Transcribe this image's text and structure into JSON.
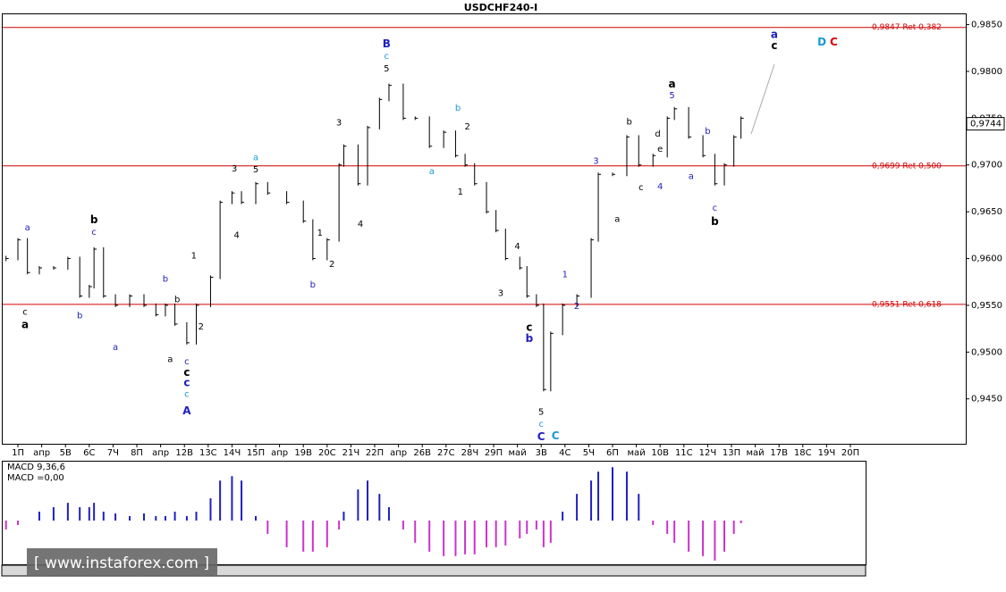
{
  "chart_data": [
    {
      "type": "ohlc",
      "title": "USDCHF240-I",
      "x": [
        -0.5,
        0,
        0.4,
        0.9,
        1.5,
        2.1,
        2.6,
        3.0,
        3.2,
        3.6,
        4.1,
        4.7,
        5.3,
        5.8,
        6.2,
        6.6,
        7.1,
        7.5,
        8.1,
        8.5,
        9.0,
        9.4,
        10.0,
        10.5,
        11.3,
        12.0,
        12.4,
        13.0,
        13.5,
        13.7,
        14.3,
        14.7,
        15.2,
        15.6,
        16.2,
        16.7,
        17.3,
        17.9,
        18.4,
        18.8,
        19.2,
        19.7,
        20.1,
        20.5,
        21.1,
        21.4,
        21.8,
        22.1,
        22.4,
        22.9,
        23.5,
        24.1,
        24.4,
        25.0,
        25.6,
        26.1,
        26.7,
        27.3,
        27.6,
        28.2,
        28.8,
        29.3,
        29.7,
        30.1,
        30.4
      ],
      "series": [
        {
          "color": "#000000",
          "values": [
            0.96,
            0.962,
            0.9585,
            0.959,
            0.959,
            0.96,
            0.956,
            0.957,
            0.961,
            0.956,
            0.955,
            0.956,
            0.955,
            0.954,
            0.955,
            0.953,
            0.951,
            0.955,
            0.958,
            0.966,
            0.967,
            0.966,
            0.968,
            0.967,
            0.966,
            0.964,
            0.96,
            0.962,
            0.97,
            0.972,
            0.968,
            0.974,
            0.977,
            0.9785,
            0.975,
            0.975,
            0.972,
            0.9735,
            0.971,
            0.97,
            0.968,
            0.965,
            0.963,
            0.96,
            0.959,
            0.956,
            0.955,
            0.946,
            0.952,
            0.955,
            0.956,
            0.962,
            0.969,
            0.969,
            0.973,
            0.97,
            0.971,
            0.975,
            0.976,
            0.973,
            0.971,
            0.968,
            0.97,
            0.973,
            0.975
          ]
        }
      ],
      "xlim": [
        -0.64,
        39.85
      ],
      "xticks": [
        {
          "value": 0,
          "label": "1П"
        },
        {
          "value": 1,
          "label": "апр"
        },
        {
          "value": 2,
          "label": "5В"
        },
        {
          "value": 3,
          "label": "6С"
        },
        {
          "value": 4,
          "label": "7Ч"
        },
        {
          "value": 5,
          "label": "8П"
        },
        {
          "value": 6,
          "label": "апр"
        },
        {
          "value": 7,
          "label": "12В"
        },
        {
          "value": 8,
          "label": "13С"
        },
        {
          "value": 9,
          "label": "14Ч"
        },
        {
          "value": 10,
          "label": "15П"
        },
        {
          "value": 11,
          "label": "апр"
        },
        {
          "value": 12,
          "label": "19В"
        },
        {
          "value": 13,
          "label": "20С"
        },
        {
          "value": 14,
          "label": "21Ч"
        },
        {
          "value": 15,
          "label": "22П"
        },
        {
          "value": 16,
          "label": "апр"
        },
        {
          "value": 17,
          "label": "26В"
        },
        {
          "value": 18,
          "label": "27С"
        },
        {
          "value": 19,
          "label": "28Ч"
        },
        {
          "value": 20,
          "label": "29П"
        },
        {
          "value": 21,
          "label": "май"
        },
        {
          "value": 22,
          "label": "3В"
        },
        {
          "value": 23,
          "label": "4С"
        },
        {
          "value": 24,
          "label": "5Ч"
        },
        {
          "value": 25,
          "label": "6П"
        },
        {
          "value": 26,
          "label": "май"
        },
        {
          "value": 27,
          "label": "10В"
        },
        {
          "value": 28,
          "label": "11С"
        },
        {
          "value": 29,
          "label": "12Ч"
        },
        {
          "value": 30,
          "label": "13П"
        },
        {
          "value": 31,
          "label": "май"
        },
        {
          "value": 32,
          "label": "17В"
        },
        {
          "value": 33,
          "label": "18С"
        },
        {
          "value": 34,
          "label": "19Ч"
        },
        {
          "value": 35,
          "label": "20П"
        }
      ],
      "ylim": [
        0.9402,
        0.9862
      ],
      "yticks": [
        {
          "value": 0.945,
          "label": "0,9450"
        },
        {
          "value": 0.95,
          "label": "0,9500"
        },
        {
          "value": 0.955,
          "label": "0,9550"
        },
        {
          "value": 0.96,
          "label": "0,9600"
        },
        {
          "value": 0.965,
          "label": "0,9650"
        },
        {
          "value": 0.97,
          "label": "0,9700"
        },
        {
          "value": 0.975,
          "label": "0,9750"
        },
        {
          "value": 0.98,
          "label": "0,9800"
        },
        {
          "value": 0.985,
          "label": "0,9850"
        }
      ],
      "levels_color": "#d00000",
      "levels": [
        {
          "value": 0.9847,
          "label": "0,9847 Ret 0,382"
        },
        {
          "value": 0.9699,
          "label": "0,9699 Ret 0,500"
        },
        {
          "value": 0.9551,
          "label": "0,9551 Ret 0,618"
        }
      ],
      "last": {
        "value": 0.9744,
        "label": "0,9744"
      },
      "annotations": [
        {
          "text": "a",
          "x": 0.4,
          "y": 0.9633,
          "color": "#2020c0"
        },
        {
          "text": "c",
          "x": 0.3,
          "y": 0.9543,
          "color": "#000000"
        },
        {
          "text": "a",
          "x": 0.3,
          "y": 0.9529,
          "color": "#000000",
          "bold": true
        },
        {
          "text": "b",
          "x": 3.2,
          "y": 0.9641,
          "color": "#000000",
          "bold": true
        },
        {
          "text": "c",
          "x": 3.2,
          "y": 0.9628,
          "color": "#2020c0"
        },
        {
          "text": "b",
          "x": 2.6,
          "y": 0.9539,
          "color": "#2020c0"
        },
        {
          "text": "a",
          "x": 4.1,
          "y": 0.9505,
          "color": "#2020c0"
        },
        {
          "text": "b",
          "x": 6.2,
          "y": 0.9578,
          "color": "#2020c0"
        },
        {
          "text": "b",
          "x": 6.7,
          "y": 0.9556,
          "color": "#000000"
        },
        {
          "text": "a",
          "x": 6.4,
          "y": 0.9492,
          "color": "#000000"
        },
        {
          "text": "1",
          "x": 7.4,
          "y": 0.9603,
          "color": "#000000"
        },
        {
          "text": "2",
          "x": 7.7,
          "y": 0.9527,
          "color": "#000000"
        },
        {
          "text": "c",
          "x": 7.1,
          "y": 0.949,
          "color": "#2020c0"
        },
        {
          "text": "c",
          "x": 7.1,
          "y": 0.9478,
          "color": "#000000",
          "bold": true
        },
        {
          "text": "c",
          "x": 7.1,
          "y": 0.9467,
          "color": "#2020c0",
          "bold": true
        },
        {
          "text": "c",
          "x": 7.1,
          "y": 0.9455,
          "color": "#1a9ad6"
        },
        {
          "text": "A",
          "x": 7.1,
          "y": 0.9437,
          "color": "#2020c0",
          "bold": true
        },
        {
          "text": "3",
          "x": 9.1,
          "y": 0.9696,
          "color": "#000000"
        },
        {
          "text": "4",
          "x": 9.2,
          "y": 0.9625,
          "color": "#000000"
        },
        {
          "text": "a",
          "x": 10.0,
          "y": 0.9708,
          "color": "#1a9ad6"
        },
        {
          "text": "5",
          "x": 10.0,
          "y": 0.9695,
          "color": "#000000"
        },
        {
          "text": "1",
          "x": 12.7,
          "y": 0.9627,
          "color": "#000000"
        },
        {
          "text": "2",
          "x": 13.2,
          "y": 0.9594,
          "color": "#000000"
        },
        {
          "text": "b",
          "x": 12.4,
          "y": 0.9572,
          "color": "#2020c0"
        },
        {
          "text": "3",
          "x": 13.5,
          "y": 0.9745,
          "color": "#000000"
        },
        {
          "text": "4",
          "x": 14.4,
          "y": 0.9637,
          "color": "#000000"
        },
        {
          "text": "B",
          "x": 15.5,
          "y": 0.9829,
          "color": "#2020c0",
          "bold": true
        },
        {
          "text": "c",
          "x": 15.5,
          "y": 0.9816,
          "color": "#1a9ad6"
        },
        {
          "text": "5",
          "x": 15.5,
          "y": 0.9803,
          "color": "#000000"
        },
        {
          "text": "a",
          "x": 17.4,
          "y": 0.9693,
          "color": "#1a9ad6"
        },
        {
          "text": "b",
          "x": 18.5,
          "y": 0.9761,
          "color": "#1a9ad6"
        },
        {
          "text": "2",
          "x": 18.9,
          "y": 0.9741,
          "color": "#000000"
        },
        {
          "text": "1",
          "x": 18.6,
          "y": 0.9671,
          "color": "#000000"
        },
        {
          "text": "4",
          "x": 21.0,
          "y": 0.9613,
          "color": "#000000"
        },
        {
          "text": "3",
          "x": 20.3,
          "y": 0.9563,
          "color": "#000000"
        },
        {
          "text": "c",
          "x": 21.5,
          "y": 0.9526,
          "color": "#000000",
          "bold": true
        },
        {
          "text": "b",
          "x": 21.5,
          "y": 0.9514,
          "color": "#2020c0",
          "bold": true
        },
        {
          "text": "5",
          "x": 22.0,
          "y": 0.9436,
          "color": "#000000"
        },
        {
          "text": "c",
          "x": 22.0,
          "y": 0.9423,
          "color": "#1a9ad6"
        },
        {
          "text": "C",
          "x": 22.0,
          "y": 0.9409,
          "color": "#2020c0",
          "bold": true
        },
        {
          "text": "C",
          "x": 22.6,
          "y": 0.941,
          "color": "#1a9ad6",
          "bold": true
        },
        {
          "text": "1",
          "x": 23.0,
          "y": 0.9583,
          "color": "#2020c0"
        },
        {
          "text": "2",
          "x": 23.5,
          "y": 0.9549,
          "color": "#2020c0"
        },
        {
          "text": "3",
          "x": 24.3,
          "y": 0.9704,
          "color": "#2020c0"
        },
        {
          "text": "a",
          "x": 25.2,
          "y": 0.9642,
          "color": "#000000"
        },
        {
          "text": "b",
          "x": 25.7,
          "y": 0.9746,
          "color": "#000000"
        },
        {
          "text": "c",
          "x": 26.2,
          "y": 0.9676,
          "color": "#000000"
        },
        {
          "text": "d",
          "x": 26.9,
          "y": 0.9733,
          "color": "#000000"
        },
        {
          "text": "e",
          "x": 27.0,
          "y": 0.9717,
          "color": "#000000"
        },
        {
          "text": "4",
          "x": 27.0,
          "y": 0.9677,
          "color": "#2020c0"
        },
        {
          "text": "a",
          "x": 27.5,
          "y": 0.9786,
          "color": "#000000",
          "bold": true
        },
        {
          "text": "5",
          "x": 27.5,
          "y": 0.9774,
          "color": "#2020c0"
        },
        {
          "text": "a",
          "x": 28.3,
          "y": 0.9688,
          "color": "#2020c0"
        },
        {
          "text": "b",
          "x": 29.0,
          "y": 0.9736,
          "color": "#2020c0"
        },
        {
          "text": "c",
          "x": 29.3,
          "y": 0.9654,
          "color": "#2020c0"
        },
        {
          "text": "b",
          "x": 29.3,
          "y": 0.9639,
          "color": "#000000",
          "bold": true
        },
        {
          "text": "a",
          "x": 31.8,
          "y": 0.9839,
          "color": "#2020c0",
          "bold": true
        },
        {
          "text": "c",
          "x": 31.8,
          "y": 0.9827,
          "color": "#000000",
          "bold": true
        },
        {
          "text": "D",
          "x": 33.8,
          "y": 0.9831,
          "color": "#1a9ad6",
          "bold": true
        },
        {
          "text": "C",
          "x": 34.3,
          "y": 0.9831,
          "color": "#e00000",
          "bold": true
        }
      ]
    },
    {
      "type": "histogram-osc",
      "labels": [
        "MACD 9,36,6",
        "MACD =0,00"
      ],
      "x": [
        -0.5,
        0,
        0.4,
        0.9,
        1.5,
        2.1,
        2.6,
        3.0,
        3.2,
        3.6,
        4.1,
        4.7,
        5.3,
        5.8,
        6.2,
        6.6,
        7.1,
        7.5,
        8.1,
        8.5,
        9.0,
        9.4,
        10.0,
        10.5,
        11.3,
        12.0,
        12.4,
        13.0,
        13.5,
        13.7,
        14.3,
        14.7,
        15.2,
        15.6,
        16.2,
        16.7,
        17.3,
        17.9,
        18.4,
        18.8,
        19.2,
        19.7,
        20.1,
        20.5,
        21.1,
        21.4,
        21.8,
        22.1,
        22.4,
        22.9,
        23.5,
        24.1,
        24.4,
        25.0,
        25.6,
        26.1,
        26.7,
        27.3,
        27.6,
        28.2,
        28.8,
        29.3,
        29.7,
        30.1,
        30.4
      ],
      "values": [
        -0.0007,
        -0.00035,
        0,
        0.0007,
        0.00105,
        0.0014,
        0.00105,
        0.00105,
        0.0014,
        0.0007,
        0.00056,
        0.00035,
        0.00056,
        0.00035,
        0.00035,
        0.0007,
        0.00035,
        0.0007,
        0.00175,
        0.00315,
        0.0035,
        0.00315,
        0.00035,
        -0.00105,
        -0.0021,
        -0.00245,
        -0.00245,
        -0.0021,
        -0.0007,
        0.0007,
        0.00245,
        0.00315,
        0.0021,
        0.00105,
        -0.0007,
        -0.00175,
        -0.00245,
        -0.0028,
        -0.0028,
        -0.00266,
        -0.00266,
        -0.0021,
        -0.0021,
        -0.00196,
        -0.0014,
        -0.00105,
        -0.0007,
        -0.0021,
        -0.00175,
        0.0007,
        0.0021,
        0.00315,
        0.00385,
        0.0042,
        0.00385,
        0.0021,
        -0.00035,
        -0.00105,
        -0.00175,
        -0.00245,
        -0.0028,
        -0.00315,
        -0.00245,
        -0.00105,
        -0.00021
      ],
      "xlim": [
        -0.64,
        39.85
      ],
      "ylim": [
        -0.0045,
        0.0045
      ],
      "color_positive": "#2020c0",
      "color_negative": "#cc33cc"
    }
  ],
  "watermark": "[ www.instaforex.com ]"
}
